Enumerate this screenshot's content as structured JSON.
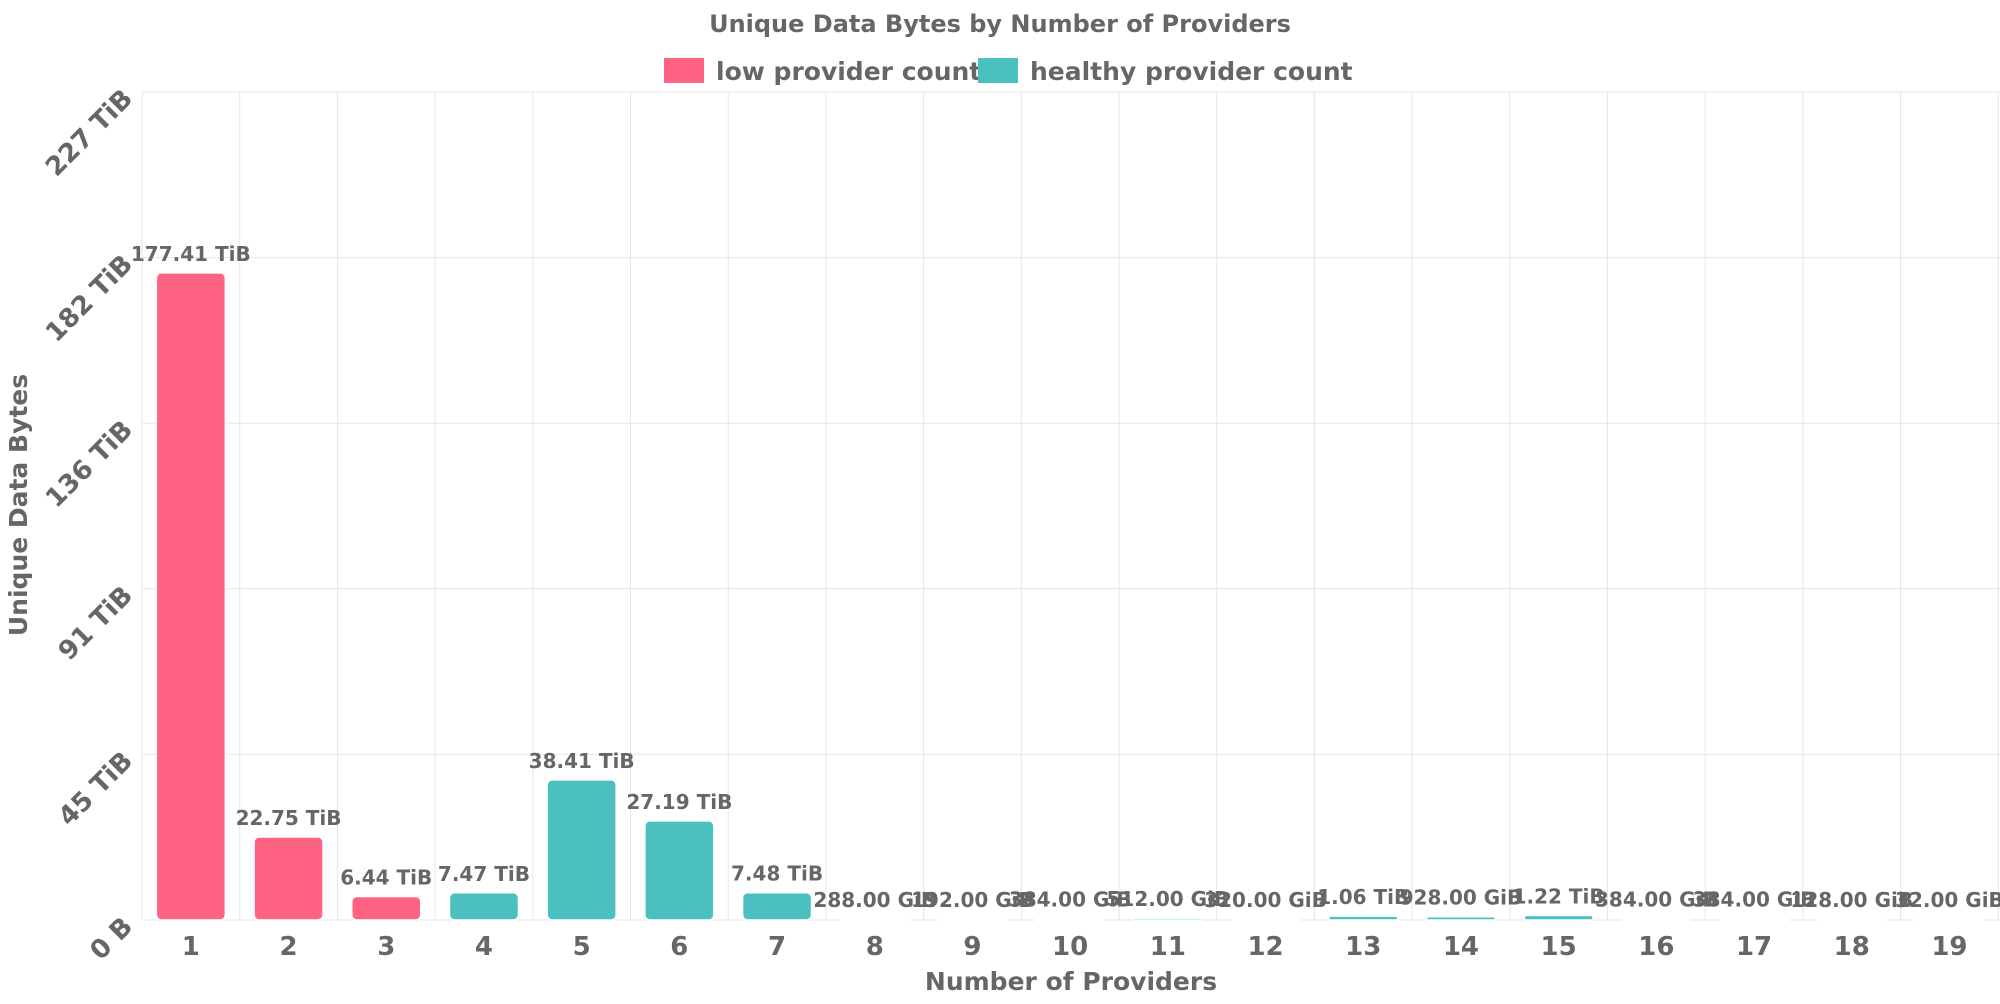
{
  "chart_data": {
    "type": "bar",
    "title": "Unique Data Bytes by Number of Providers",
    "xlabel": "Number of Providers",
    "ylabel": "Unique Data Bytes",
    "grid": true,
    "legend_position": "top-center",
    "legend": [
      {
        "name": "low provider count",
        "color": "#ff6384"
      },
      {
        "name": "healthy provider count",
        "color": "#4bc0c0"
      }
    ],
    "y_ticks": [
      {
        "label": "0 B",
        "value": 0
      },
      {
        "label": "45 TiB",
        "value": 45.4
      },
      {
        "label": "91 TiB",
        "value": 90.8
      },
      {
        "label": "136 TiB",
        "value": 136.2
      },
      {
        "label": "182 TiB",
        "value": 181.6
      },
      {
        "label": "227 TiB",
        "value": 227
      }
    ],
    "ylim": [
      0,
      227
    ],
    "y_unit": "TiB",
    "categories": [
      "1",
      "2",
      "3",
      "4",
      "5",
      "6",
      "7",
      "8",
      "9",
      "10",
      "11",
      "12",
      "13",
      "14",
      "15",
      "16",
      "17",
      "18",
      "19"
    ],
    "bars": [
      {
        "category": "1",
        "value": 177.41,
        "label": "177.41 TiB",
        "series": "low provider count"
      },
      {
        "category": "2",
        "value": 22.75,
        "label": "22.75 TiB",
        "series": "low provider count"
      },
      {
        "category": "3",
        "value": 6.44,
        "label": "6.44 TiB",
        "series": "low provider count"
      },
      {
        "category": "4",
        "value": 7.47,
        "label": "7.47 TiB",
        "series": "healthy provider count"
      },
      {
        "category": "5",
        "value": 38.41,
        "label": "38.41 TiB",
        "series": "healthy provider count"
      },
      {
        "category": "6",
        "value": 27.19,
        "label": "27.19 TiB",
        "series": "healthy provider count"
      },
      {
        "category": "7",
        "value": 7.48,
        "label": "7.48 TiB",
        "series": "healthy provider count"
      },
      {
        "category": "8",
        "value": 0.28125,
        "label": "288.00 GiB",
        "series": "healthy provider count"
      },
      {
        "category": "9",
        "value": 0.1875,
        "label": "192.00 GiB",
        "series": "healthy provider count"
      },
      {
        "category": "10",
        "value": 0.375,
        "label": "384.00 GiB",
        "series": "healthy provider count"
      },
      {
        "category": "11",
        "value": 0.5,
        "label": "512.00 GiB",
        "series": "healthy provider count"
      },
      {
        "category": "12",
        "value": 0.3125,
        "label": "320.00 GiB",
        "series": "healthy provider count"
      },
      {
        "category": "13",
        "value": 1.06,
        "label": "1.06 TiB",
        "series": "healthy provider count"
      },
      {
        "category": "14",
        "value": 0.90625,
        "label": "928.00 GiB",
        "series": "healthy provider count"
      },
      {
        "category": "15",
        "value": 1.22,
        "label": "1.22 TiB",
        "series": "healthy provider count"
      },
      {
        "category": "16",
        "value": 0.375,
        "label": "384.00 GiB",
        "series": "healthy provider count"
      },
      {
        "category": "17",
        "value": 0.375,
        "label": "384.00 GiB",
        "series": "healthy provider count"
      },
      {
        "category": "18",
        "value": 0.125,
        "label": "128.00 GiB",
        "series": "healthy provider count"
      },
      {
        "category": "19",
        "value": 0.03125,
        "label": "32.00 GiB",
        "series": "healthy provider count"
      }
    ]
  }
}
